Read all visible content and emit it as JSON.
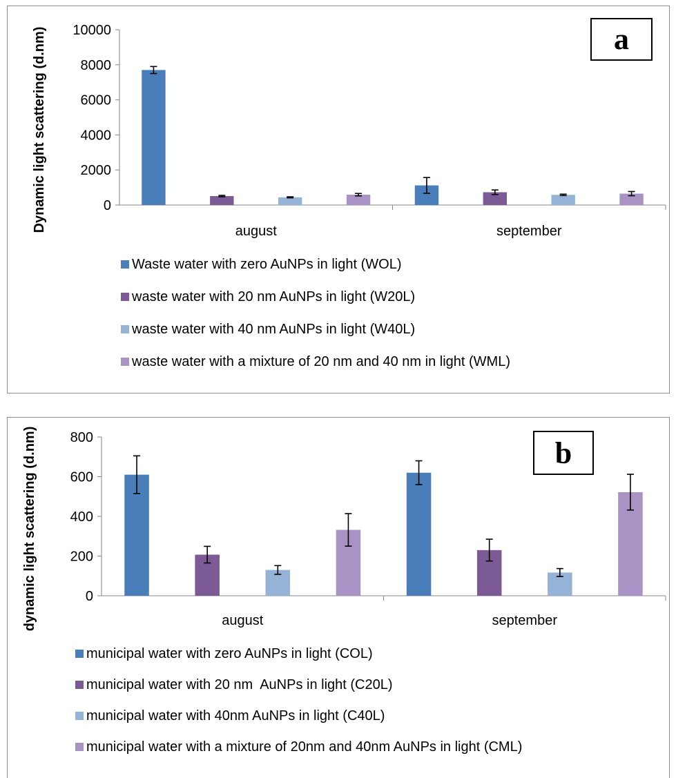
{
  "chart_data": [
    {
      "type": "bar",
      "panel_label": "a",
      "ylabel": "Dynamic light scattering (d.nm)",
      "xlabel": "",
      "ylim": [
        0,
        10000
      ],
      "yticks": [
        "0",
        "2000",
        "4000",
        "6000",
        "8000",
        "10000"
      ],
      "ytick_values": [
        0,
        2000,
        4000,
        6000,
        8000,
        10000
      ],
      "categories": [
        "august",
        "september"
      ],
      "legend_position": "bottom",
      "grid": false,
      "series": [
        {
          "name": "Waste water with zero AuNPs in light (WOL)",
          "color": "#4a7ebb",
          "values": [
            7700,
            1120
          ],
          "errors": [
            200,
            450
          ]
        },
        {
          "name": "waste water with 20 nm AuNPs in light (W20L)",
          "color": "#7b5a96",
          "values": [
            510,
            730
          ],
          "errors": [
            40,
            130
          ]
        },
        {
          "name": "waste water with 40 nm AuNPs in light (W40L)",
          "color": "#95b3d7",
          "values": [
            440,
            580
          ],
          "errors": [
            30,
            40
          ]
        },
        {
          "name": "waste water with a mixture of 20 nm and 40 nm in light (WML)",
          "color": "#a993c4",
          "values": [
            590,
            650
          ],
          "errors": [
            70,
            120
          ]
        }
      ]
    },
    {
      "type": "bar",
      "panel_label": "b",
      "ylabel": "dynamic light scattering (d.nm)",
      "xlabel": "",
      "ylim": [
        0,
        800
      ],
      "yticks": [
        "0",
        "200",
        "400",
        "600",
        "800"
      ],
      "ytick_values": [
        0,
        200,
        400,
        600,
        800
      ],
      "categories": [
        "august",
        "september"
      ],
      "legend_position": "bottom",
      "grid": false,
      "series": [
        {
          "name": "municipal water with zero AuNPs in light (COL)",
          "color": "#4a7ebb",
          "values": [
            610,
            620
          ],
          "errors": [
            95,
            60
          ]
        },
        {
          "name": "municipal water with 20 nm  AuNPs in light (C20L)",
          "color": "#7b5a96",
          "values": [
            207,
            230
          ],
          "errors": [
            42,
            55
          ]
        },
        {
          "name": "municipal water with 40nm AuNPs in light (C40L)",
          "color": "#95b3d7",
          "values": [
            130,
            117
          ],
          "errors": [
            22,
            20
          ]
        },
        {
          "name": "municipal water with a mixture of 20nm and 40nm AuNPs in light (CML)",
          "color": "#a993c4",
          "values": [
            332,
            522
          ],
          "errors": [
            82,
            90
          ]
        }
      ]
    }
  ]
}
